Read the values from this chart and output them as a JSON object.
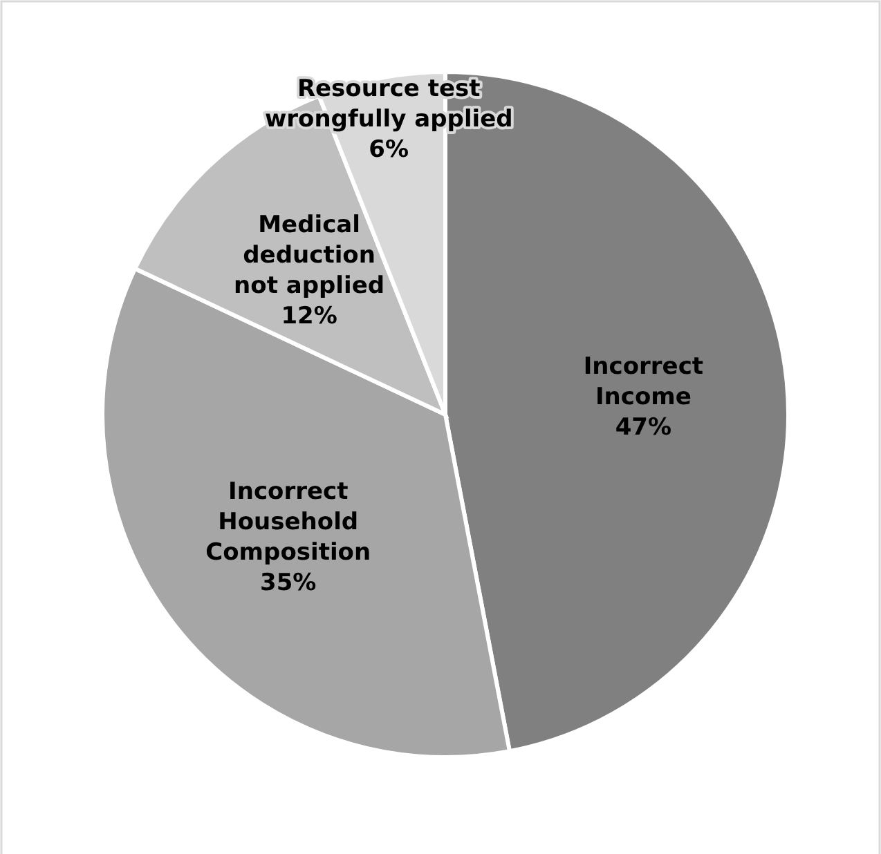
{
  "chart_data": {
    "type": "pie",
    "categories": [
      "Incorrect\nIncome",
      "Incorrect\nHousehold\nComposition",
      "Medical\ndeduction\nnot applied",
      "Resource test\nwrongfully applied"
    ],
    "values": [
      47,
      35,
      12,
      6
    ],
    "value_labels": [
      "47%",
      "35%",
      "12%",
      "6%"
    ],
    "colors": [
      "#808080",
      "#a6a6a6",
      "#bfbfbf",
      "#d9d9d9"
    ]
  }
}
